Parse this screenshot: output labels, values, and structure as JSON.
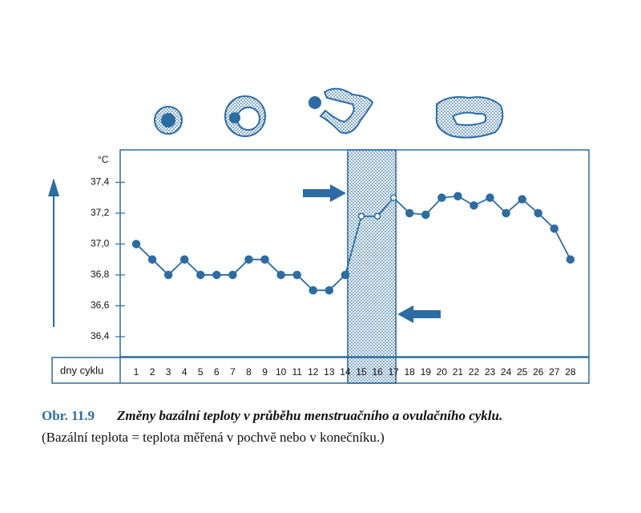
{
  "chart_data": {
    "type": "line",
    "y_unit": "°C",
    "x_label": "dny cyklu",
    "categories": [
      "1",
      "2",
      "3",
      "4",
      "5",
      "6",
      "7",
      "8",
      "9",
      "10",
      "11",
      "12",
      "13",
      "14",
      "15",
      "16",
      "17",
      "18",
      "19",
      "20",
      "21",
      "22",
      "23",
      "24",
      "25",
      "26",
      "27",
      "28"
    ],
    "series": [
      {
        "color": "#2b6ca3",
        "values": [
          37.0,
          36.9,
          36.8,
          36.9,
          36.8,
          36.8,
          36.8,
          36.9,
          36.9,
          36.8,
          36.8,
          36.7,
          36.7,
          36.8,
          37.18,
          37.18,
          37.3,
          37.2,
          37.19,
          37.3,
          37.31,
          37.25,
          37.3,
          37.2,
          37.29,
          37.2,
          37.1,
          36.9
        ]
      }
    ],
    "ylim": [
      36.27,
      37.61
    ],
    "yticks": [
      {
        "value": 36.4,
        "label": "36,4"
      },
      {
        "value": 36.6,
        "label": "36,6"
      },
      {
        "value": 36.8,
        "label": "36,8"
      },
      {
        "value": 37.0,
        "label": "37,0"
      },
      {
        "value": 37.2,
        "label": "37,2"
      },
      {
        "value": 37.4,
        "label": "37,4"
      }
    ],
    "band": [
      14,
      17
    ],
    "caption": {
      "figure": "Obr. 11.9",
      "title": "Změny bazální teploty v průběhu menstruačního a ovulačního cyklu.",
      "note": "(Bazální teplota = teplota měřená v pochvě nebo v konečníku.)"
    }
  }
}
